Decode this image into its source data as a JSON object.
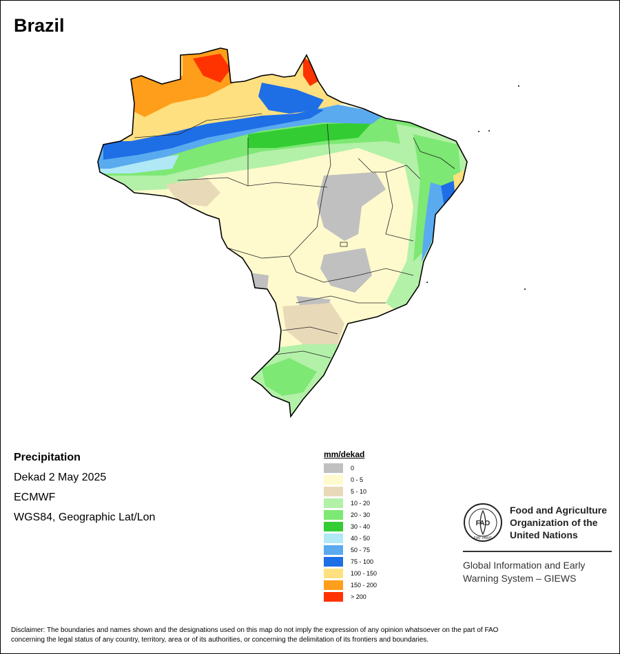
{
  "title": "Brazil",
  "info": {
    "heading": "Precipitation",
    "period": "Dekad 2 May 2025",
    "source": "ECMWF",
    "projection": "WGS84, Geographic Lat/Lon"
  },
  "legend": {
    "unit": "mm/dekad",
    "items": [
      {
        "label": "0",
        "color": "#c0c0c0"
      },
      {
        "label": "0 - 5",
        "color": "#fffacd"
      },
      {
        "label": "5 - 10",
        "color": "#e8d9b8"
      },
      {
        "label": "10 - 20",
        "color": "#b3f0a8"
      },
      {
        "label": "20 - 30",
        "color": "#7de873"
      },
      {
        "label": "30 - 40",
        "color": "#33cc33"
      },
      {
        "label": "40 - 50",
        "color": "#b0e8f5"
      },
      {
        "label": "50 - 75",
        "color": "#5aaaf0"
      },
      {
        "label": "75 - 100",
        "color": "#1e6ee6"
      },
      {
        "label": "100 - 150",
        "color": "#ffe080"
      },
      {
        "label": "150 - 200",
        "color": "#ff9e1a"
      },
      {
        "label": "> 200",
        "color": "#ff3300"
      }
    ]
  },
  "fao": {
    "org_line1": "Food and Agriculture",
    "org_line2": "Organization of the",
    "org_line3": "United Nations",
    "giews_line1": "Global Information and Early",
    "giews_line2": "Warning System – GIEWS",
    "logo_text": "FAO",
    "logo_motto": "FIAT PANIS"
  },
  "disclaimer_line1": "Disclaimer: The boundaries and names shown and the designations used on this map do not imply the expression of any opinion whatsoever on the part of FAO",
  "disclaimer_line2": "concerning the legal status of any country, territory, area or of its authorities, or concerning the delimitation of its frontiers and boundaries."
}
